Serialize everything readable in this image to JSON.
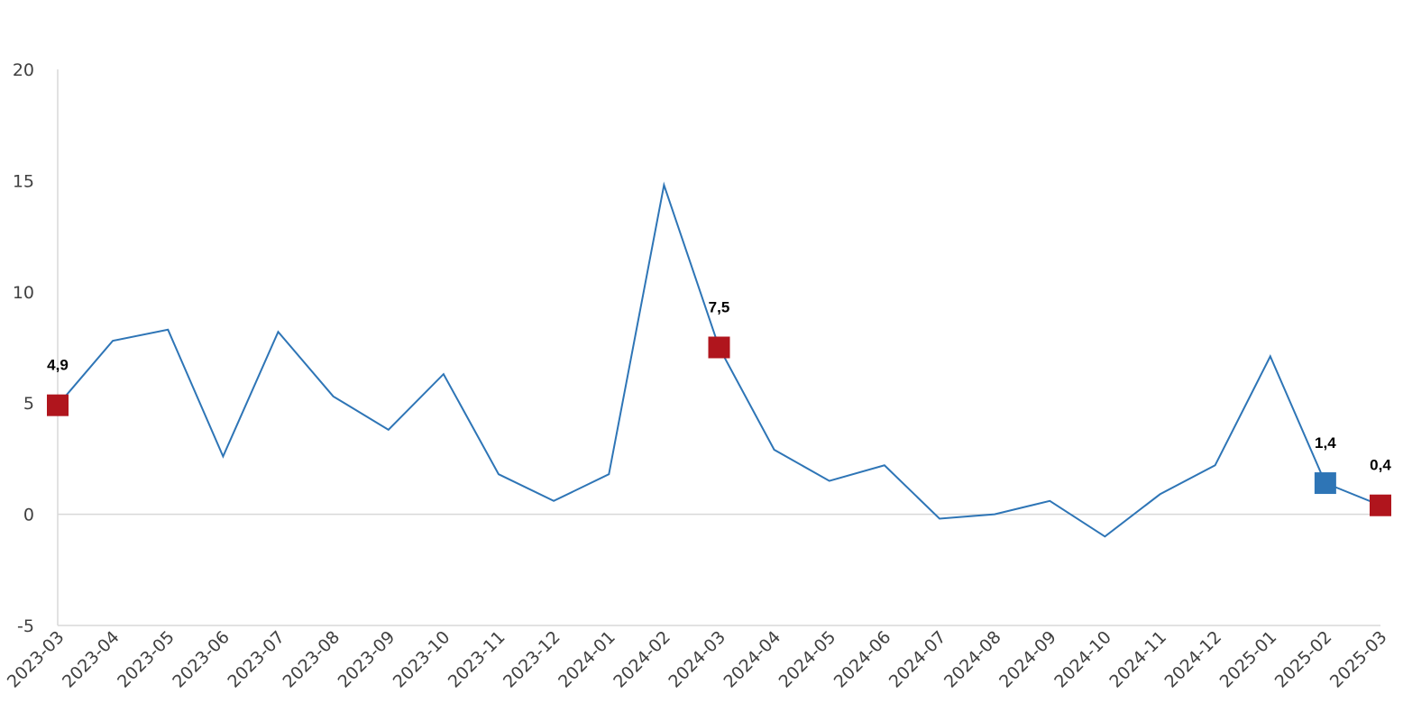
{
  "colors": {
    "line": "#2e75b6",
    "marker_red": "#b0151d",
    "marker_blue": "#2e75b6",
    "axis": "#d9d9d9",
    "zero_line": "#d9d9d9",
    "tick_text": "#404040"
  },
  "chart_data": {
    "type": "line",
    "title": "",
    "xlabel": "",
    "ylabel": "",
    "ylim": [
      -5,
      20
    ],
    "yticks": [
      -5,
      0,
      5,
      10,
      15,
      20
    ],
    "ytick_labels": [
      "-5",
      "0",
      "5",
      "10",
      "15",
      "20"
    ],
    "grid": false,
    "legend": "none",
    "categories": [
      "2023-03",
      "2023-04",
      "2023-05",
      "2023-06",
      "2023-07",
      "2023-08",
      "2023-09",
      "2023-10",
      "2023-11",
      "2023-12",
      "2024-01",
      "2024-02",
      "2024-03",
      "2024-04",
      "2024-05",
      "2024-06",
      "2024-07",
      "2024-08",
      "2024-09",
      "2024-10",
      "2024-11",
      "2024-12",
      "2025-01",
      "2025-02",
      "2025-03"
    ],
    "series": [
      {
        "values": [
          4.9,
          7.8,
          8.3,
          2.6,
          8.2,
          5.3,
          3.8,
          6.3,
          1.8,
          0.6,
          1.8,
          14.8,
          7.5,
          2.9,
          1.5,
          2.2,
          -0.2,
          0.0,
          0.6,
          -1.0,
          0.9,
          2.2,
          7.1,
          1.4,
          0.4
        ]
      }
    ],
    "highlighted_points": [
      {
        "category": "2023-03",
        "value": 4.9,
        "label": "4,9",
        "color": "red"
      },
      {
        "category": "2024-03",
        "value": 7.5,
        "label": "7,5",
        "color": "red"
      },
      {
        "category": "2025-02",
        "value": 1.4,
        "label": "1,4",
        "color": "blue"
      },
      {
        "category": "2025-03",
        "value": 0.4,
        "label": "0,4",
        "color": "red"
      }
    ]
  }
}
